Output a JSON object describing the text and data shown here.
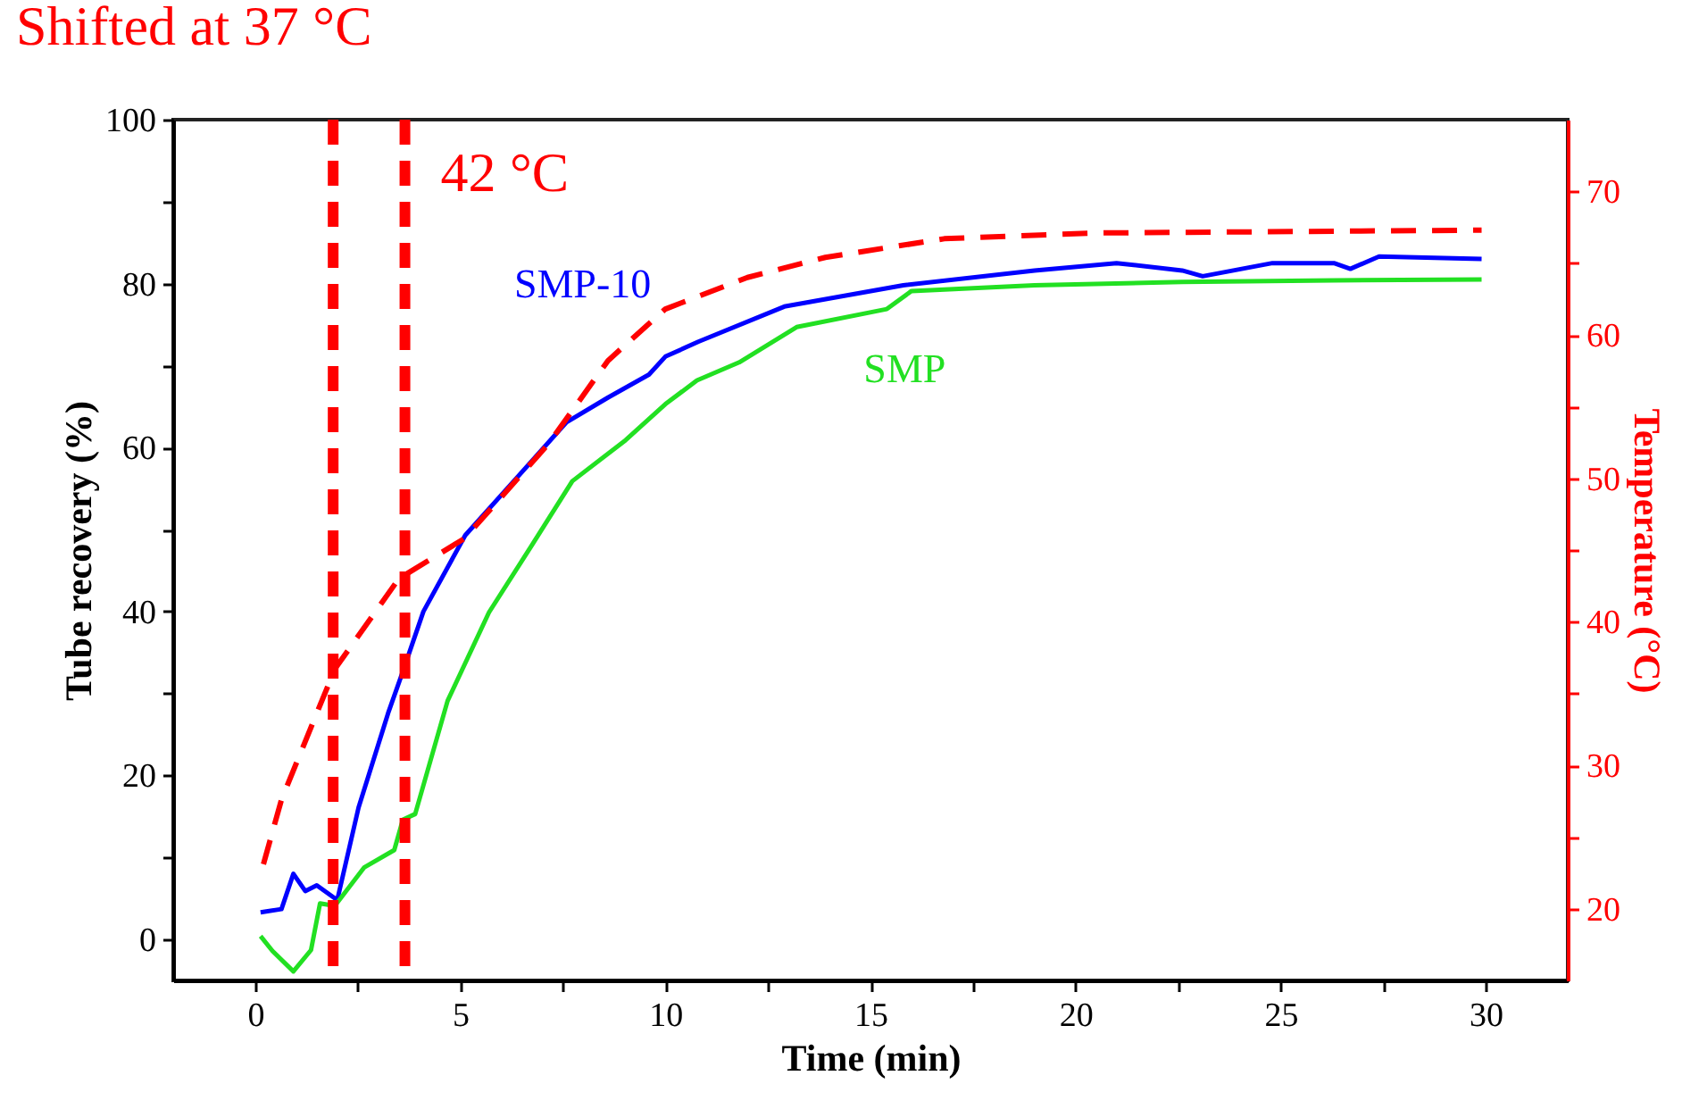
{
  "chart_data": {
    "type": "line",
    "title": "Shifted at 37 °C",
    "xlabel": "Time (min)",
    "ylabel": "Tube recovery (%)",
    "y2label": "Temperature (°C)",
    "xlim": [
      -2,
      32
    ],
    "xticks": [
      0,
      {
        "value": 2.5,
        "label": null
      },
      5,
      {
        "value": 7.5,
        "label": null
      },
      10,
      {
        "value": 12.5,
        "label": null
      },
      15,
      {
        "value": 17.5,
        "label": null
      },
      20,
      {
        "value": 22.5,
        "label": null
      },
      25,
      {
        "value": 27.5,
        "label": null
      },
      30
    ],
    "ylim": [
      -5,
      100
    ],
    "yticks": [
      0,
      {
        "value": 10,
        "label": null
      },
      20,
      {
        "value": 30,
        "label": null
      },
      40,
      {
        "value": 50,
        "label": null
      },
      60,
      {
        "value": 70,
        "label": null
      },
      80,
      {
        "value": 90,
        "label": null
      },
      100
    ],
    "y2lim": [
      15,
      75
    ],
    "y2ticks": [
      20,
      {
        "value": 25,
        "label": null
      },
      30,
      {
        "value": 35,
        "label": null
      },
      40,
      {
        "value": 45,
        "label": null
      },
      50,
      {
        "value": 55,
        "label": null
      },
      60,
      {
        "value": 65,
        "label": null
      },
      70
    ],
    "grid": false,
    "series": [
      {
        "name": "SMP-10",
        "color": "#0000ff",
        "x": [
          0.13,
          0.64,
          0.93,
          1.22,
          1.5,
          2.0,
          2.52,
          3.24,
          3.6,
          4.1,
          5.12,
          6.43,
          7.59,
          8.6,
          9.6,
          10.0,
          10.8,
          12.9,
          15.8,
          19.0,
          21.0,
          22.6,
          23.1,
          24.8,
          26.3,
          26.7,
          27.4,
          29.9
        ],
        "values": [
          3.3,
          3.7,
          8.0,
          5.9,
          6.6,
          4.8,
          16.1,
          27.6,
          32.7,
          40,
          49.3,
          56.6,
          63.1,
          66.1,
          68.9,
          71.1,
          72.9,
          77.2,
          79.8,
          81.6,
          82.5,
          81.6,
          80.9,
          82.5,
          82.5,
          81.8,
          83.3,
          83.0
        ]
      },
      {
        "name": "SMP",
        "color": "#22e022",
        "x": [
          0.13,
          0.42,
          0.93,
          1.36,
          1.58,
          1.94,
          2.66,
          3.39,
          3.6,
          3.9,
          4.69,
          5.7,
          6.72,
          7.73,
          9.03,
          10.0,
          10.77,
          11.8,
          13.2,
          15.4,
          16.0,
          19.0,
          22.6,
          26.3,
          29.9
        ],
        "values": [
          0.4,
          -1.4,
          -3.9,
          -1.3,
          4.4,
          4.1,
          8.8,
          10.9,
          14.6,
          15.3,
          29.1,
          39.9,
          47.9,
          55.9,
          60.9,
          65.3,
          68.2,
          70.4,
          74.7,
          76.9,
          79.1,
          79.8,
          80.2,
          80.4,
          80.5
        ]
      },
      {
        "color": "#ff0000",
        "axis": "y2",
        "line_style": "dashed",
        "x": [
          0.2,
          0.64,
          1.94,
          3.5,
          5.1,
          7.15,
          8.6,
          10.0,
          12.0,
          13.9,
          16.8,
          20.5,
          29.9
        ],
        "values": [
          23.1,
          27.6,
          36.7,
          43,
          45.8,
          52.4,
          58.2,
          61.8,
          64.0,
          65.4,
          66.7,
          67.1,
          67.3
        ]
      }
    ],
    "ref_lines": [
      {
        "axis": "x",
        "value": 1.9,
        "color": "#ff0000",
        "line_style": "dashed"
      },
      {
        "axis": "x",
        "value": 3.65,
        "label": "42 °C",
        "color": "#ff0000",
        "line_style": "dashed"
      }
    ]
  }
}
